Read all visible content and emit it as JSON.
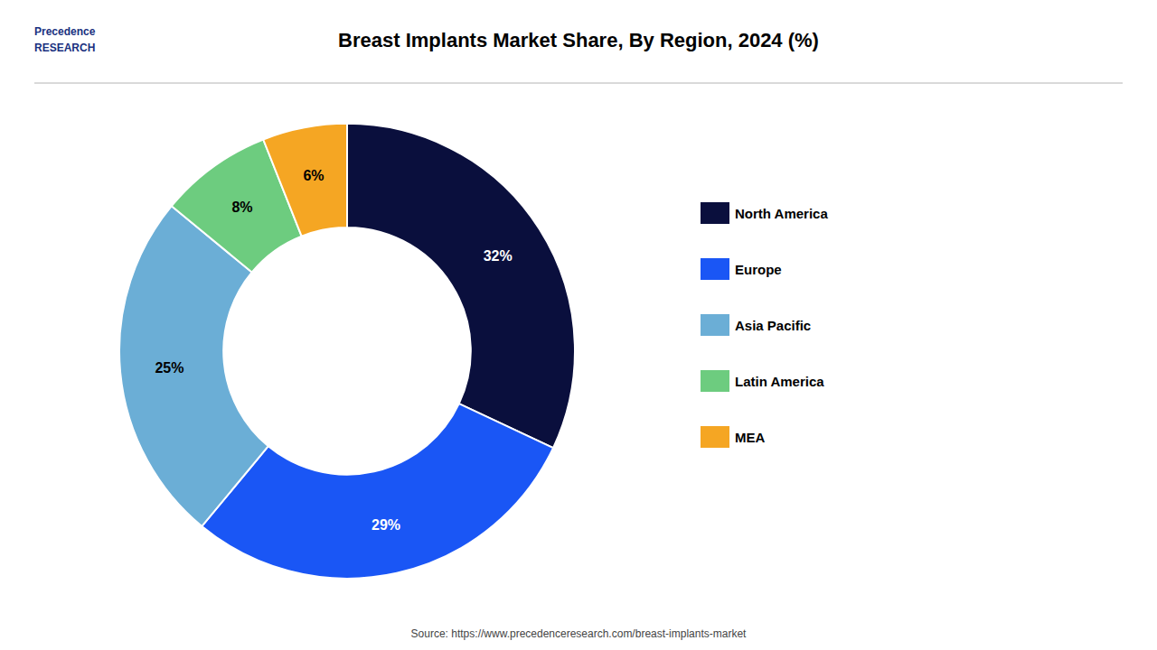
{
  "chart_data": {
    "type": "pie",
    "title": "Breast Implants Market Share, By Region, 2024 (%)",
    "categories": [
      "North America",
      "Europe",
      "Asia Pacific",
      "Latin America",
      "MEA"
    ],
    "values": [
      32,
      29,
      25,
      8,
      6
    ],
    "value_labels": [
      "32%",
      "29%",
      "25%",
      "8%",
      "6%"
    ],
    "colors": [
      "#0a0f3d",
      "#1a56f5",
      "#6baed6",
      "#6dcc7f",
      "#f5a623"
    ],
    "data_labels": true,
    "legend": "right",
    "annotations": [
      "Source: https://www.precedenceresearch.com/breast-implants-market",
      "Precedence\nRESEARCH"
    ]
  }
}
